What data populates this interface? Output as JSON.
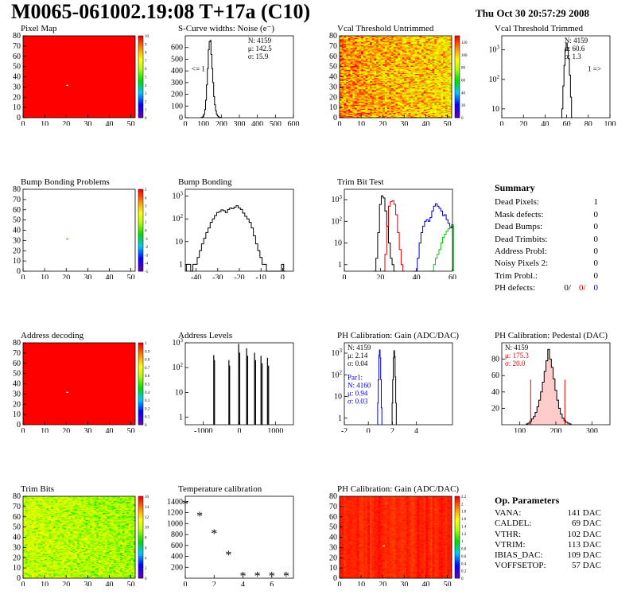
{
  "header": {
    "title": "M0065-061002.19:08 T+17a (C10)",
    "date": "Thu Oct 30 20:57:29 2008"
  },
  "colors": {
    "black": "#000000",
    "red": "#dd0000",
    "blue": "#0000cc",
    "green": "#00cc00",
    "map_red": "#ff0000",
    "pedestal_fill": "#ffcccc"
  },
  "summary": {
    "title": "Summary",
    "rows": [
      {
        "label": "Dead Pixels:",
        "value": "1"
      },
      {
        "label": "Mask defects:",
        "value": "0"
      },
      {
        "label": "Dead Bumps:",
        "value": "0"
      },
      {
        "label": "Dead Trimbits:",
        "value": "0"
      },
      {
        "label": "Address Probl:",
        "value": "0"
      },
      {
        "label": "Noisy Pixels 2:",
        "value": "0"
      },
      {
        "label": "Trim Probl.:",
        "value": "0"
      }
    ],
    "ph_label": "PH defects:",
    "ph_values": [
      "0/",
      "0/",
      "0"
    ]
  },
  "op_params": {
    "title": "Op. Parameters",
    "rows": [
      {
        "label": "VANA:",
        "value": "141 DAC"
      },
      {
        "label": "CALDEL:",
        "value": "69 DAC"
      },
      {
        "label": "VTHR:",
        "value": "102 DAC"
      },
      {
        "label": "VTRIM:",
        "value": "113 DAC"
      },
      {
        "label": "IBIAS_DAC:",
        "value": "109 DAC"
      },
      {
        "label": "VOFFSETOP:",
        "value": "57 DAC"
      }
    ]
  },
  "chart_data": [
    {
      "id": "pixel_map",
      "type": "heatmap",
      "title": "Pixel Map",
      "xlim": [
        0,
        52
      ],
      "ylim": [
        0,
        80
      ],
      "xticks": [
        0,
        10,
        20,
        30,
        40,
        50
      ],
      "yticks": [
        0,
        10,
        20,
        30,
        40,
        50,
        60,
        70,
        80
      ],
      "zlim": [
        0,
        10
      ],
      "zticks": [
        0,
        1,
        2,
        3,
        4,
        5,
        6,
        7,
        8,
        9,
        10
      ],
      "pattern": "uniform",
      "base_value": 10,
      "special": [
        {
          "x": 20,
          "y": 31,
          "value": 0
        }
      ]
    },
    {
      "id": "scurve_noise",
      "type": "histogram",
      "title": "S-Curve widths: Noise (e⁻)",
      "xlim": [
        0,
        600
      ],
      "ylim": [
        0,
        700
      ],
      "logy": false,
      "xticks": [
        0,
        100,
        200,
        300,
        400,
        500,
        600
      ],
      "yticks": [
        0,
        100,
        200,
        300,
        400,
        500,
        600
      ],
      "stats": [
        "N: 4159",
        "μ: 142.5",
        "σ: 15.9"
      ],
      "annotation": "<= 1",
      "series": [
        {
          "x": [
            90,
            95,
            100,
            105,
            110,
            115,
            120,
            125,
            130,
            135,
            140,
            145,
            150,
            155,
            160,
            165,
            170,
            175,
            180,
            185,
            190,
            195,
            200
          ],
          "y": [
            2,
            5,
            12,
            30,
            70,
            150,
            280,
            420,
            580,
            650,
            660,
            540,
            420,
            300,
            180,
            110,
            60,
            30,
            15,
            8,
            4,
            2,
            1
          ]
        }
      ]
    },
    {
      "id": "vcal_untrimmed",
      "type": "heatmap",
      "title": "Vcal Threshold Untrimmed",
      "xlim": [
        0,
        52
      ],
      "ylim": [
        0,
        80
      ],
      "xticks": [
        0,
        10,
        20,
        30,
        40,
        50
      ],
      "yticks": [
        0,
        10,
        20,
        30,
        40,
        50,
        60,
        70,
        80
      ],
      "zlim": [
        0,
        130
      ],
      "zticks": [
        0,
        20,
        40,
        60,
        80,
        100,
        120
      ],
      "pattern": "noisy",
      "base_value": 105,
      "spread": 18,
      "gradient_x": 0.35
    },
    {
      "id": "vcal_trimmed",
      "type": "histogram",
      "title": "Vcal Threshold Trimmed",
      "xlim": [
        0,
        100
      ],
      "ylim": [
        5,
        3000
      ],
      "logy": true,
      "xticks": [
        0,
        20,
        40,
        60,
        80,
        100
      ],
      "yticks": [
        10,
        100,
        1000
      ],
      "stats": [
        "N: 4159",
        "μ: 60.6",
        "σ: 1.3"
      ],
      "annotation": "1 =>",
      "series": [
        {
          "x": [
            56,
            57,
            58,
            59,
            60,
            61,
            62,
            63,
            64,
            65
          ],
          "y": [
            10,
            60,
            300,
            1000,
            1700,
            1200,
            500,
            140,
            25,
            5
          ]
        }
      ]
    },
    {
      "id": "bump_problems",
      "type": "heatmap",
      "title": "Bump Bonding Problems",
      "xlim": [
        0,
        52
      ],
      "ylim": [
        0,
        80
      ],
      "xticks": [
        0,
        10,
        20,
        30,
        40,
        50
      ],
      "yticks": [
        0,
        10,
        20,
        30,
        40,
        50,
        60,
        70,
        80
      ],
      "zlim": [
        -5,
        5
      ],
      "zticks": [
        -5,
        -4,
        -3,
        -2,
        -1,
        0,
        1,
        2,
        3,
        4,
        5
      ],
      "pattern": "empty",
      "special": [
        {
          "x": 20,
          "y": 31,
          "value": 0
        }
      ]
    },
    {
      "id": "bump_bonding",
      "type": "histogram",
      "title": "Bump Bonding",
      "xlim": [
        -45,
        5
      ],
      "ylim": [
        0.5,
        2000
      ],
      "logy": true,
      "xticks": [
        -40,
        -30,
        -20,
        -10,
        0
      ],
      "yticks": [
        1,
        10,
        100,
        1000
      ],
      "series": [
        {
          "x": [
            -44,
            -43,
            -42,
            -41,
            -40,
            -39,
            -38,
            -37,
            -36,
            -35,
            -34,
            -33,
            -32,
            -31,
            -30,
            -29,
            -28,
            -27,
            -26,
            -25,
            -24,
            -23,
            -22,
            -21,
            -20,
            -19,
            -18,
            -17,
            -16,
            -15,
            -14,
            -13,
            -12,
            -11,
            -10,
            -9,
            -8,
            -7,
            -6,
            -5,
            -4,
            -3,
            -2,
            -1,
            0,
            1
          ],
          "y": [
            1,
            1,
            0,
            1,
            1,
            2,
            4,
            8,
            14,
            25,
            40,
            70,
            100,
            140,
            190,
            210,
            250,
            230,
            190,
            260,
            300,
            280,
            330,
            380,
            300,
            260,
            180,
            130,
            100,
            70,
            40,
            18,
            8,
            4,
            2,
            1,
            1,
            0,
            0,
            0,
            0,
            0,
            0,
            0,
            1,
            0
          ]
        }
      ]
    },
    {
      "id": "trim_bit_test",
      "type": "histogram",
      "title": "Trim Bit Test",
      "xlim": [
        0,
        60
      ],
      "ylim": [
        0.5,
        3000
      ],
      "logy": true,
      "xticks": [
        0,
        20,
        40,
        60
      ],
      "yticks": [
        1,
        10,
        100,
        1000
      ],
      "series": [
        {
          "color": "#000000",
          "x": [
            17,
            18,
            19,
            20,
            21,
            22,
            23,
            24,
            25,
            26,
            27,
            28
          ],
          "y": [
            0.5,
            2,
            30,
            600,
            1500,
            1200,
            300,
            60,
            10,
            2,
            1,
            0.5
          ]
        },
        {
          "color": "#dd0000",
          "x": [
            22,
            23,
            24,
            25,
            26,
            27,
            28,
            29,
            30,
            31,
            32,
            33
          ],
          "y": [
            0.5,
            3,
            60,
            500,
            800,
            900,
            600,
            200,
            30,
            5,
            1,
            0.5
          ]
        },
        {
          "color": "#0000cc",
          "x": [
            39,
            40,
            41,
            42,
            43,
            44,
            45,
            46,
            47,
            48,
            49,
            50,
            51,
            52,
            53,
            54,
            55,
            56,
            57,
            58,
            59,
            60
          ],
          "y": [
            0.5,
            0.5,
            2,
            10,
            30,
            60,
            100,
            120,
            100,
            150,
            300,
            500,
            650,
            500,
            400,
            300,
            180,
            200,
            120,
            80,
            50,
            60
          ]
        },
        {
          "color": "#00cc00",
          "x": [
            48,
            49,
            50,
            51,
            52,
            53,
            54,
            55,
            56,
            57,
            58,
            59,
            60
          ],
          "y": [
            0.5,
            0.5,
            1,
            2,
            3,
            5,
            10,
            18,
            25,
            35,
            45,
            60,
            70
          ]
        }
      ]
    },
    {
      "id": "address_decoding",
      "type": "heatmap",
      "title": "Address decoding",
      "xlim": [
        0,
        52
      ],
      "ylim": [
        0,
        80
      ],
      "xticks": [
        0,
        10,
        20,
        30,
        40,
        50
      ],
      "yticks": [
        0,
        10,
        20,
        30,
        40,
        50,
        60,
        70,
        80
      ],
      "zlim": [
        0,
        1
      ],
      "zticks": [
        0,
        0.1,
        0.2,
        0.3,
        0.4,
        0.5,
        0.6,
        0.7,
        0.8,
        0.9,
        1
      ],
      "pattern": "uniform",
      "base_value": 1,
      "special": [
        {
          "x": 20,
          "y": 31,
          "value": 0
        }
      ]
    },
    {
      "id": "address_levels",
      "type": "histogram",
      "title": "Address Levels",
      "xlim": [
        -1500,
        1500
      ],
      "ylim": [
        0.5,
        1000
      ],
      "logy": true,
      "xticks": [
        -1000,
        0,
        1000
      ],
      "yticks": [
        1,
        10,
        100,
        1000
      ],
      "series": [
        {
          "spikes": [
            {
              "x": -710,
              "y": 320
            },
            {
              "x": -690,
              "y": 200
            },
            {
              "x": -290,
              "y": 200
            },
            {
              "x": -270,
              "y": 120
            },
            {
              "x": -20,
              "y": 900
            },
            {
              "x": 10,
              "y": 400
            },
            {
              "x": 200,
              "y": 600
            },
            {
              "x": 230,
              "y": 300
            },
            {
              "x": 420,
              "y": 400
            },
            {
              "x": 450,
              "y": 200
            },
            {
              "x": 600,
              "y": 300
            },
            {
              "x": 630,
              "y": 150
            },
            {
              "x": 780,
              "y": 250
            },
            {
              "x": 810,
              "y": 120
            }
          ]
        }
      ]
    },
    {
      "id": "ph_gain",
      "type": "histogram",
      "title": "PH Calibration: Gain (ADC/DAC)",
      "xlim": [
        -2,
        7
      ],
      "ylim": [
        0.5,
        3000
      ],
      "logy": true,
      "xticks": [
        -2,
        0,
        2,
        4
      ],
      "yticks": [
        1,
        10,
        100,
        1000
      ],
      "stats": [
        "N: 4159",
        "μ: 2.14",
        "σ: 0.04"
      ],
      "stats2_color": "#0000cc",
      "stats2": [
        "Par1:",
        "N: 4160",
        "μ: 0.94",
        "σ: 0.03"
      ],
      "series": [
        {
          "color": "#000000",
          "x": [
            2.0,
            2.05,
            2.1,
            2.15,
            2.2,
            2.25,
            2.3
          ],
          "y": [
            5,
            60,
            600,
            1300,
            700,
            80,
            5
          ]
        },
        {
          "color": "#0000cc",
          "x": [
            0.8,
            0.85,
            0.9,
            0.95,
            1.0,
            1.05,
            1.1
          ],
          "y": [
            5,
            60,
            800,
            1400,
            600,
            60,
            3
          ]
        }
      ]
    },
    {
      "id": "ph_pedestal",
      "type": "histogram",
      "title": "PH Calibration: Pedestal (DAC)",
      "xlim": [
        50,
        350
      ],
      "ylim": [
        0,
        100
      ],
      "logy": false,
      "xticks": [
        100,
        200,
        300
      ],
      "yticks": [
        20,
        40,
        60,
        80
      ],
      "stats": [
        "N: 4159"
      ],
      "stats_red": [
        "μ: 175.3",
        "σ: 20.0"
      ],
      "fit_lines": [
        130,
        225
      ],
      "series": [
        {
          "x": [
            120,
            125,
            130,
            135,
            140,
            145,
            150,
            155,
            160,
            165,
            170,
            175,
            180,
            185,
            190,
            195,
            200,
            205,
            210,
            215,
            220,
            225,
            230,
            235,
            240
          ],
          "y": [
            1,
            2,
            4,
            7,
            10,
            15,
            22,
            30,
            40,
            52,
            65,
            78,
            92,
            80,
            70,
            56,
            42,
            30,
            20,
            13,
            8,
            5,
            3,
            2,
            1
          ]
        }
      ]
    },
    {
      "id": "trim_bits",
      "type": "heatmap",
      "title": "Trim Bits",
      "xlim": [
        0,
        52
      ],
      "ylim": [
        0,
        80
      ],
      "xticks": [
        0,
        10,
        20,
        30,
        40,
        50
      ],
      "yticks": [
        0,
        10,
        20,
        30,
        40,
        50,
        60,
        70,
        80
      ],
      "zlim": [
        0,
        16
      ],
      "zticks": [
        0,
        2,
        4,
        6,
        8,
        10,
        12,
        14,
        16
      ],
      "pattern": "noisy",
      "base_value": 9.8,
      "spread": 1.4,
      "gradient_x": 0.3
    },
    {
      "id": "temperature_calibration",
      "type": "scatter",
      "title": "Temperature calibration",
      "xlim": [
        0,
        7.5
      ],
      "ylim": [
        0,
        1500
      ],
      "logy": false,
      "xticks": [
        0,
        2,
        4,
        6
      ],
      "yticks": [
        200,
        400,
        600,
        800,
        1000,
        1200,
        1400
      ],
      "marker": "*",
      "x": [
        0,
        1,
        2,
        3,
        4,
        5,
        6,
        7
      ],
      "y": [
        1370,
        1150,
        830,
        440,
        50,
        50,
        50,
        50
      ]
    },
    {
      "id": "ph_gain_map",
      "type": "heatmap",
      "title": "PH Calibration: Gain (ADC/DAC)",
      "xlim": [
        0,
        52
      ],
      "ylim": [
        0,
        80
      ],
      "xticks": [
        0,
        10,
        20,
        30,
        40,
        50
      ],
      "yticks": [
        0,
        10,
        20,
        30,
        40,
        50,
        60,
        70,
        80
      ],
      "zlim": [
        0,
        2.2
      ],
      "zticks": [
        0,
        0.2,
        0.4,
        0.6,
        0.8,
        1,
        1.2,
        1.4,
        1.6,
        1.8,
        2,
        2.2
      ],
      "pattern": "noisy",
      "base_value": 2.12,
      "spread": 0.07,
      "column_mode": true,
      "special": [
        {
          "x": 20,
          "y": 31,
          "value": 0
        }
      ]
    }
  ]
}
